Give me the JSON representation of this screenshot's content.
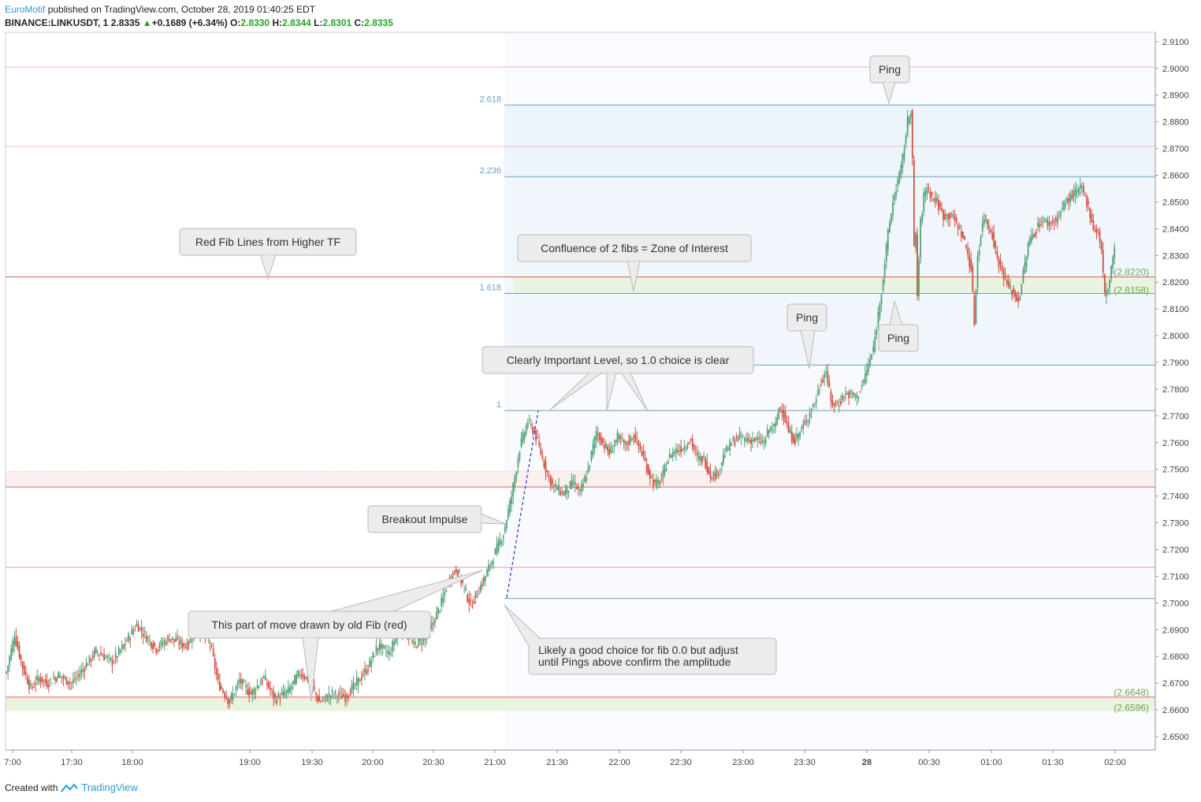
{
  "header": {
    "publisher": "EuroMotif",
    "published_text": " published on TradingView.com, October 28, 2019 01:40:25 EDT",
    "symbol": "BINANCE:LINKUSDT, 1",
    "last": "2.8335",
    "change": "+0.1689 (+6.34%)",
    "o_label": "O:",
    "o_val": "2.8330",
    "h_label": "H:",
    "h_val": "2.8344",
    "l_label": "L:",
    "l_val": "2.8301",
    "c_label": "C:",
    "c_val": "2.8335",
    "up_arrow": "▲"
  },
  "footer": {
    "created_with": "Created with",
    "brand": "TradingView"
  },
  "colors": {
    "up": "#53a077",
    "down": "#d2513f",
    "fib_blue": "#6a9fc0",
    "red_line": "#e06060",
    "pink_line": "#f5c0c8",
    "green_zone": "#eaf2e0",
    "blue_zone": "#eef4fb",
    "axis_text": "#444444"
  },
  "chart_data": {
    "type": "candlestick",
    "symbol": "BINANCE:LINKUSDT",
    "interval": "1",
    "x_ticks": [
      "7:00",
      "17:30",
      "18:00",
      "19:00",
      "19:30",
      "20:00",
      "20:30",
      "21:00",
      "21:30",
      "22:00",
      "22:30",
      "23:00",
      "23:30",
      "28",
      "00:30",
      "01:00",
      "01:30",
      "02:00"
    ],
    "y_ticks": [
      "2.6500",
      "2.6600",
      "2.6700",
      "2.6800",
      "2.6900",
      "2.7000",
      "2.7100",
      "2.7200",
      "2.7300",
      "2.7400",
      "2.7500",
      "2.7600",
      "2.7700",
      "2.7800",
      "2.7900",
      "2.8000",
      "2.8100",
      "2.8200",
      "2.8300",
      "2.8400",
      "2.8500",
      "2.8600",
      "2.8700",
      "2.8800",
      "2.8900",
      "2.9000",
      "2.9100"
    ],
    "ylim": [
      2.645,
      2.9135
    ],
    "fib_levels": [
      {
        "label": "2.618",
        "price": 2.8863
      },
      {
        "label": "2.236",
        "price": 2.8595
      },
      {
        "label": "1.618",
        "price": 2.8158
      },
      {
        "label": "1",
        "price": 2.789
      },
      {
        "label": "1",
        "price": 2.772
      },
      {
        "label": "",
        "price": 2.7017
      }
    ],
    "red_fib_levels": [
      2.9005,
      2.8708,
      2.822,
      2.7434,
      2.7133,
      2.6648
    ],
    "zones": [
      {
        "type": "green",
        "from": 2.8158,
        "to": 2.822,
        "labels": [
          "(2.8220)",
          "(2.8158)"
        ]
      },
      {
        "type": "red",
        "from": 2.7434,
        "to": 2.7493
      },
      {
        "type": "green",
        "from": 2.6596,
        "to": 2.6648,
        "labels": [
          "(2.6648)",
          "(2.6596)"
        ]
      }
    ],
    "price_path": [
      [
        0,
        2.674
      ],
      [
        5,
        2.688
      ],
      [
        10,
        2.676
      ],
      [
        15,
        2.668
      ],
      [
        20,
        2.672
      ],
      [
        25,
        2.67
      ],
      [
        32,
        2.673
      ],
      [
        40,
        2.67
      ],
      [
        48,
        2.676
      ],
      [
        55,
        2.682
      ],
      [
        60,
        2.68
      ],
      [
        65,
        2.678
      ],
      [
        72,
        2.684
      ],
      [
        80,
        2.692
      ],
      [
        85,
        2.688
      ],
      [
        92,
        2.683
      ],
      [
        100,
        2.687
      ],
      [
        110,
        2.684
      ],
      [
        118,
        2.69
      ],
      [
        125,
        2.685
      ],
      [
        130,
        2.67
      ],
      [
        137,
        2.663
      ],
      [
        143,
        2.671
      ],
      [
        150,
        2.666
      ],
      [
        158,
        2.672
      ],
      [
        165,
        2.664
      ],
      [
        173,
        2.667
      ],
      [
        180,
        2.674
      ],
      [
        186,
        2.671
      ],
      [
        192,
        2.663
      ],
      [
        200,
        2.666
      ],
      [
        208,
        2.665
      ],
      [
        215,
        2.67
      ],
      [
        222,
        2.676
      ],
      [
        228,
        2.684
      ],
      [
        235,
        2.681
      ],
      [
        240,
        2.689
      ],
      [
        245,
        2.69
      ],
      [
        250,
        2.684
      ],
      [
        255,
        2.686
      ],
      [
        260,
        2.69
      ],
      [
        267,
        2.7
      ],
      [
        271,
        2.708
      ],
      [
        276,
        2.713
      ],
      [
        280,
        2.707
      ],
      [
        285,
        2.699
      ],
      [
        290,
        2.705
      ],
      [
        294,
        2.71
      ],
      [
        298,
        2.716
      ],
      [
        305,
        2.726
      ],
      [
        310,
        2.74
      ],
      [
        315,
        2.758
      ],
      [
        320,
        2.768
      ],
      [
        324,
        2.764
      ],
      [
        330,
        2.752
      ],
      [
        335,
        2.744
      ],
      [
        342,
        2.741
      ],
      [
        348,
        2.745
      ],
      [
        352,
        2.741
      ],
      [
        357,
        2.75
      ],
      [
        362,
        2.764
      ],
      [
        366,
        2.76
      ],
      [
        370,
        2.756
      ],
      [
        375,
        2.762
      ],
      [
        380,
        2.759
      ],
      [
        385,
        2.763
      ],
      [
        390,
        2.756
      ],
      [
        394,
        2.749
      ],
      [
        398,
        2.744
      ],
      [
        402,
        2.746
      ],
      [
        406,
        2.754
      ],
      [
        410,
        2.757
      ],
      [
        415,
        2.758
      ],
      [
        420,
        2.761
      ],
      [
        424,
        2.754
      ],
      [
        428,
        2.754
      ],
      [
        432,
        2.748
      ],
      [
        436,
        2.748
      ],
      [
        440,
        2.755
      ],
      [
        445,
        2.76
      ],
      [
        450,
        2.762
      ],
      [
        455,
        2.761
      ],
      [
        460,
        2.761
      ],
      [
        465,
        2.76
      ],
      [
        468,
        2.765
      ],
      [
        472,
        2.766
      ],
      [
        474,
        2.773
      ],
      [
        476,
        2.773
      ],
      [
        480,
        2.764
      ],
      [
        484,
        2.761
      ],
      [
        488,
        2.765
      ],
      [
        492,
        2.77
      ],
      [
        496,
        2.775
      ],
      [
        500,
        2.783
      ],
      [
        503,
        2.787
      ],
      [
        506,
        2.775
      ],
      [
        510,
        2.774
      ],
      [
        514,
        2.778
      ],
      [
        518,
        2.778
      ],
      [
        522,
        2.777
      ],
      [
        526,
        2.783
      ],
      [
        529,
        2.789
      ],
      [
        532,
        2.795
      ],
      [
        535,
        2.808
      ],
      [
        538,
        2.822
      ],
      [
        541,
        2.838
      ],
      [
        544,
        2.85
      ],
      [
        547,
        2.858
      ],
      [
        549,
        2.862
      ],
      [
        551,
        2.871
      ],
      [
        553,
        2.88
      ],
      [
        555,
        2.885
      ],
      [
        556,
        2.866
      ],
      [
        557,
        2.832
      ],
      [
        558,
        2.838
      ],
      [
        559,
        2.815
      ],
      [
        561,
        2.842
      ],
      [
        563,
        2.852
      ],
      [
        565,
        2.856
      ],
      [
        568,
        2.852
      ],
      [
        571,
        2.85
      ],
      [
        575,
        2.845
      ],
      [
        580,
        2.845
      ],
      [
        585,
        2.84
      ],
      [
        589,
        2.833
      ],
      [
        592,
        2.825
      ],
      [
        594,
        2.805
      ],
      [
        596,
        2.83
      ],
      [
        598,
        2.838
      ],
      [
        600,
        2.845
      ],
      [
        602,
        2.842
      ],
      [
        605,
        2.838
      ],
      [
        608,
        2.829
      ],
      [
        612,
        2.823
      ],
      [
        615,
        2.818
      ],
      [
        618,
        2.816
      ],
      [
        621,
        2.813
      ],
      [
        624,
        2.823
      ],
      [
        627,
        2.834
      ],
      [
        630,
        2.838
      ],
      [
        635,
        2.843
      ],
      [
        640,
        2.842
      ],
      [
        645,
        2.844
      ],
      [
        650,
        2.85
      ],
      [
        655,
        2.853
      ],
      [
        660,
        2.855
      ],
      [
        662,
        2.852
      ],
      [
        665,
        2.846
      ],
      [
        667,
        2.84
      ],
      [
        670,
        2.839
      ],
      [
        672,
        2.832
      ],
      [
        674,
        2.815
      ],
      [
        676,
        2.817
      ],
      [
        678,
        2.826
      ],
      [
        680,
        2.833
      ]
    ],
    "annotations": [
      "Red Fib Lines from Higher TF",
      "Confluence of 2 fibs = Zone of Interest",
      "Clearly Important Level, so 1.0 choice is clear",
      "Breakout Impulse",
      "This part of move drawn by old Fib (red)",
      "Likely a good choice for fib 0.0 but adjust until Pings above confirm the amplitude",
      "Ping",
      "Ping",
      "Ping"
    ],
    "grid": false,
    "legend": "none"
  }
}
